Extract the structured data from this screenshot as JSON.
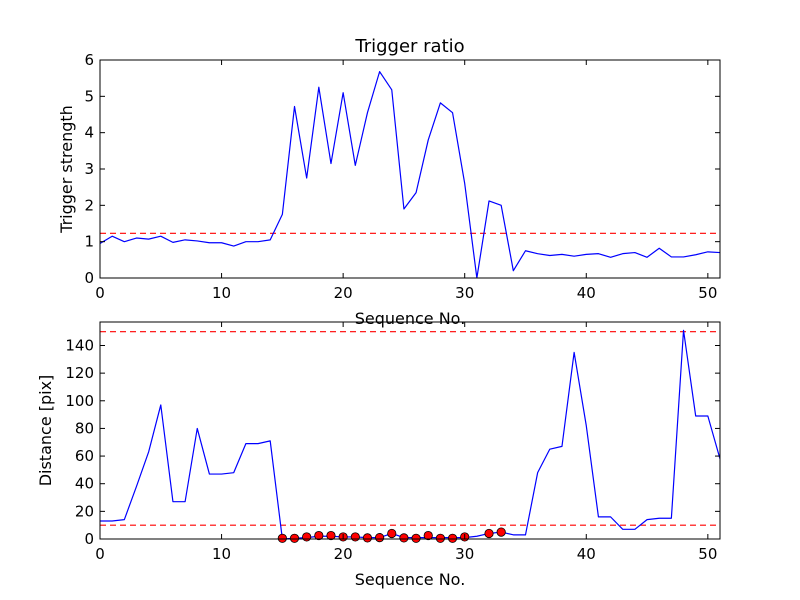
{
  "chart_data": [
    {
      "type": "line",
      "title": "Trigger ratio",
      "xlabel": "Sequence No.",
      "ylabel": "Trigger strength",
      "xlim": [
        0,
        51
      ],
      "ylim": [
        0,
        6
      ],
      "xticks": [
        "0",
        "10",
        "20",
        "30",
        "40",
        "50"
      ],
      "yticks": [
        "0",
        "1",
        "2",
        "3",
        "4",
        "5",
        "6"
      ],
      "grid": false,
      "series": [
        {
          "color": "#0000ff",
          "style": "solid",
          "x": [
            0,
            1,
            2,
            3,
            4,
            5,
            6,
            7,
            8,
            9,
            10,
            11,
            12,
            13,
            14,
            15,
            16,
            17,
            18,
            19,
            20,
            21,
            22,
            23,
            24,
            25,
            26,
            27,
            28,
            29,
            30,
            31,
            32,
            33,
            34,
            35,
            36,
            37,
            38,
            39,
            40,
            41,
            42,
            43,
            44,
            45,
            46,
            47,
            48,
            49,
            50,
            51
          ],
          "y": [
            0.95,
            1.15,
            1.0,
            1.1,
            1.07,
            1.15,
            0.98,
            1.05,
            1.02,
            0.97,
            0.97,
            0.88,
            1.0,
            1.0,
            1.05,
            1.75,
            4.72,
            2.75,
            5.25,
            3.15,
            5.1,
            3.1,
            4.55,
            5.68,
            5.18,
            1.9,
            2.35,
            3.8,
            4.82,
            4.55,
            2.6,
            0.0,
            2.12,
            2.0,
            0.2,
            0.75,
            0.67,
            0.62,
            0.65,
            0.6,
            0.65,
            0.67,
            0.57,
            0.67,
            0.7,
            0.57,
            0.82,
            0.58,
            0.58,
            0.64,
            0.72,
            0.7
          ]
        }
      ],
      "hlines": [
        {
          "y": 1.23,
          "color": "#ff0000",
          "style": "dashed"
        }
      ]
    },
    {
      "type": "line",
      "title": "",
      "xlabel": "Sequence No.",
      "ylabel": "Distance [pix]",
      "xlim": [
        0,
        51
      ],
      "ylim": [
        0,
        157
      ],
      "xticks": [
        "0",
        "10",
        "20",
        "30",
        "40",
        "50"
      ],
      "yticks": [
        "0",
        "20",
        "40",
        "60",
        "80",
        "100",
        "120",
        "140"
      ],
      "grid": false,
      "series": [
        {
          "color": "#0000ff",
          "style": "solid",
          "x": [
            0,
            1,
            2,
            3,
            4,
            5,
            6,
            7,
            8,
            9,
            10,
            11,
            12,
            13,
            14,
            15,
            16,
            17,
            18,
            19,
            20,
            21,
            22,
            23,
            24,
            25,
            26,
            27,
            28,
            29,
            30,
            31,
            32,
            33,
            34,
            35,
            36,
            37,
            38,
            39,
            40,
            41,
            42,
            43,
            44,
            45,
            46,
            47,
            48,
            49,
            50,
            51
          ],
          "y": [
            13,
            13,
            14,
            38,
            63,
            97,
            27,
            27,
            80,
            47,
            47,
            48,
            69,
            69,
            71,
            0,
            0.6,
            1,
            2,
            2,
            1.5,
            1.5,
            1,
            1,
            4,
            1,
            1,
            1,
            1,
            1,
            1,
            2,
            4,
            5,
            3,
            3,
            48,
            65,
            67,
            135,
            82,
            16,
            16,
            7,
            7,
            14,
            15,
            15,
            151,
            89,
            89,
            58
          ]
        },
        {
          "type": "scatter",
          "color": "#ff0000",
          "edgecolor": "#000000",
          "x": [
            15,
            16,
            17,
            18,
            19,
            20,
            21,
            22,
            23,
            24,
            25,
            26,
            27,
            28,
            29,
            30,
            32,
            33
          ],
          "y": [
            0.5,
            0.5,
            1.5,
            2.5,
            2.5,
            1.5,
            1.5,
            0.8,
            1.0,
            4.0,
            0.8,
            0.5,
            2.5,
            0.5,
            0.5,
            1.5,
            4.0,
            5.0
          ]
        }
      ],
      "hlines": [
        {
          "y": 150,
          "color": "#ff0000",
          "style": "dashed"
        },
        {
          "y": 10,
          "color": "#ff0000",
          "style": "dashed"
        }
      ]
    }
  ]
}
